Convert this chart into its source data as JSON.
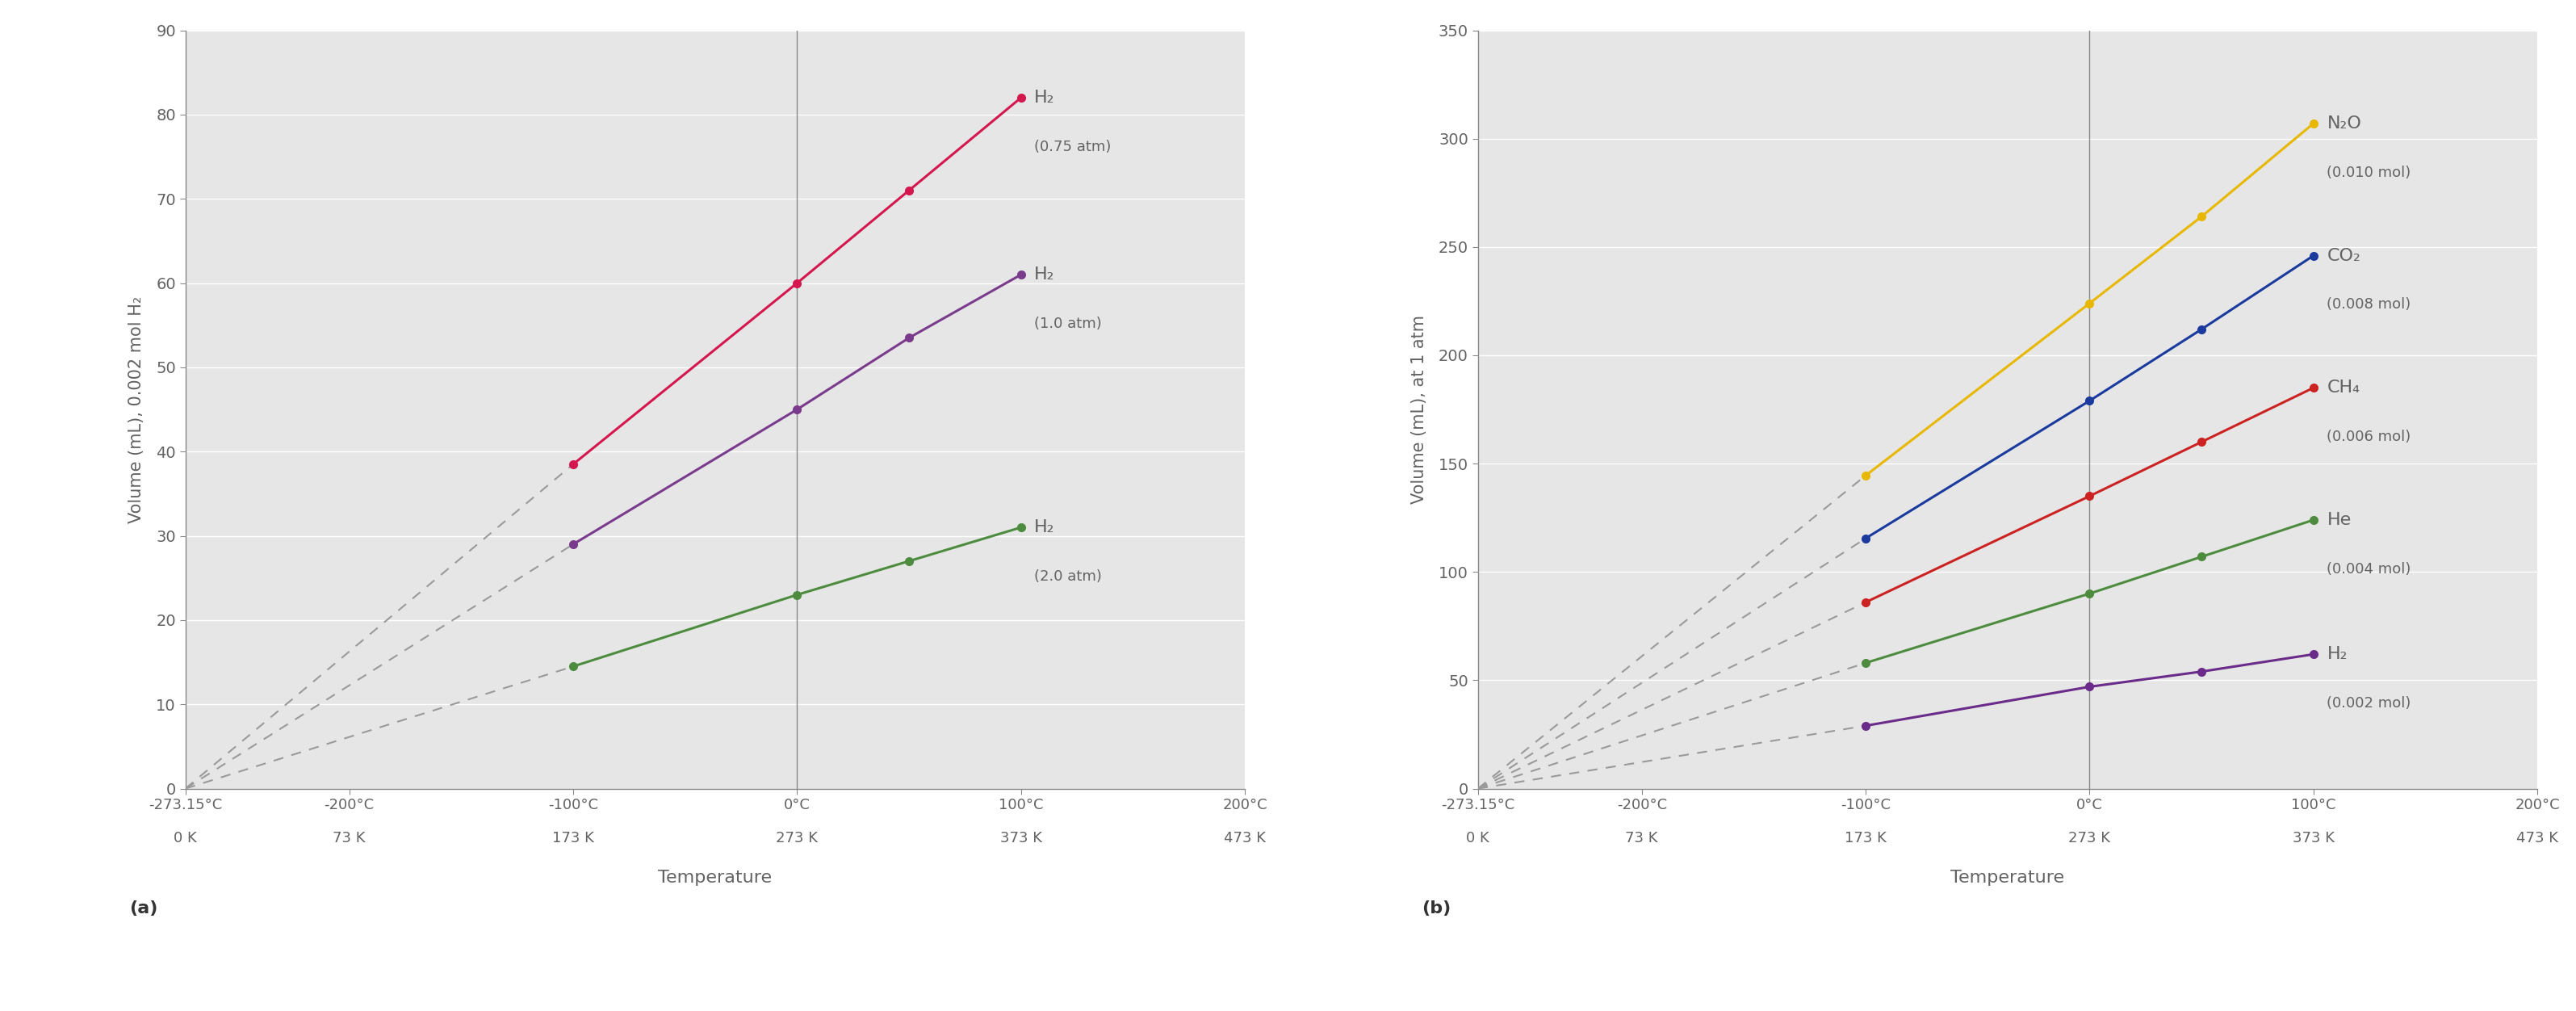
{
  "panel_a": {
    "ylabel": "Volume (mL), 0.002 mol H₂",
    "ylim": [
      0,
      90
    ],
    "yticks": [
      0,
      10,
      20,
      30,
      40,
      50,
      60,
      70,
      80,
      90
    ],
    "bg_color": "#e6e6e6",
    "series": [
      {
        "label_main": "H₂",
        "label_sub": "(0.75 atm)",
        "color": "#d4174e",
        "x": [
          -100,
          0,
          50,
          100
        ],
        "y": [
          38.5,
          60.0,
          71.0,
          82.0
        ]
      },
      {
        "label_main": "H₂",
        "label_sub": "(1.0 atm)",
        "color": "#7a3b8c",
        "x": [
          -100,
          0,
          50,
          100
        ],
        "y": [
          29.0,
          45.0,
          53.5,
          61.0
        ]
      },
      {
        "label_main": "H₂",
        "label_sub": "(2.0 atm)",
        "color": "#4d8c3f",
        "x": [
          -100,
          0,
          50,
          100
        ],
        "y": [
          14.5,
          23.0,
          27.0,
          31.0
        ]
      }
    ],
    "vline_x": 0,
    "label": "(a)"
  },
  "panel_b": {
    "ylabel": "Volume (mL), at 1 atm",
    "ylim": [
      0,
      350
    ],
    "yticks": [
      0,
      50,
      100,
      150,
      200,
      250,
      300,
      350
    ],
    "bg_color": "#e6e6e6",
    "series": [
      {
        "label_main": "N₂O",
        "label_sub": "(0.010 mol)",
        "color": "#e8b800",
        "x": [
          -100,
          0,
          50,
          100
        ],
        "y": [
          144.5,
          224.0,
          264.0,
          307.0
        ]
      },
      {
        "label_main": "CO₂",
        "label_sub": "(0.008 mol)",
        "color": "#1a3a9e",
        "x": [
          -100,
          0,
          50,
          100
        ],
        "y": [
          115.5,
          179.0,
          212.0,
          246.0
        ]
      },
      {
        "label_main": "CH₄",
        "label_sub": "(0.006 mol)",
        "color": "#cc2222",
        "x": [
          -100,
          0,
          50,
          100
        ],
        "y": [
          86.0,
          135.0,
          160.0,
          185.0
        ]
      },
      {
        "label_main": "He",
        "label_sub": "(0.004 mol)",
        "color": "#4d8c3f",
        "x": [
          -100,
          0,
          50,
          100
        ],
        "y": [
          58.0,
          90.0,
          107.0,
          124.0
        ]
      },
      {
        "label_main": "H₂",
        "label_sub": "(0.002 mol)",
        "color": "#6b2b8a",
        "x": [
          -100,
          0,
          50,
          100
        ],
        "y": [
          29.0,
          47.0,
          54.0,
          62.0
        ]
      }
    ],
    "vline_x": 0,
    "label": "(b)"
  },
  "x_origin": -273.15,
  "x_min": -273.15,
  "x_max": 200,
  "celsius_ticks": [
    -273.15,
    -200,
    -100,
    0,
    100,
    200
  ],
  "celsius_labels": [
    "-273.15°C",
    "-200°C",
    "-100°C",
    "0°C",
    "100°C",
    "200°C"
  ],
  "kelvin_labels": [
    "0 K",
    "73 K",
    "173 K",
    "273 K",
    "373 K",
    "473 K"
  ],
  "text_color": "#636363",
  "grid_color": "#ffffff",
  "dashed_color": "#9a9a9a",
  "marker_size": 8,
  "line_width": 2.2
}
